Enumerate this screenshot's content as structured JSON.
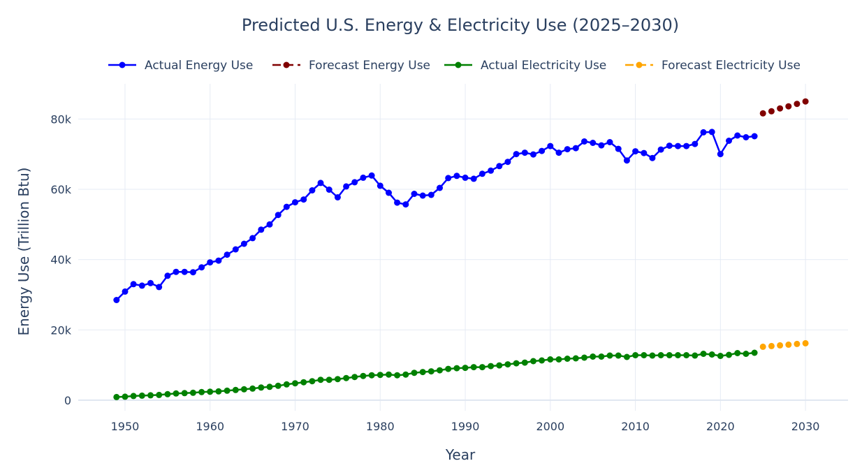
{
  "chart_data": {
    "type": "line",
    "title": "Predicted U.S. Energy & Electricity Use (2025–2030)",
    "xlabel": "Year",
    "ylabel": "Energy Use (Trillion Btu)",
    "xlim": [
      1944.5,
      2035
    ],
    "ylim": [
      -3000,
      90000
    ],
    "x_ticks": [
      1950,
      1960,
      1970,
      1980,
      1990,
      2000,
      2010,
      2020,
      2030
    ],
    "y_ticks": [
      0,
      20000,
      40000,
      60000,
      80000
    ],
    "y_tick_labels": [
      "0",
      "20k",
      "40k",
      "60k",
      "80k"
    ],
    "grid": true,
    "legend_position": "top",
    "series": [
      {
        "name": "Actual Energy Use",
        "color": "#0000ff",
        "style": "solid",
        "x": [
          1949,
          1950,
          1951,
          1952,
          1953,
          1954,
          1955,
          1956,
          1957,
          1958,
          1959,
          1960,
          1961,
          1962,
          1963,
          1964,
          1965,
          1966,
          1967,
          1968,
          1969,
          1970,
          1971,
          1972,
          1973,
          1974,
          1975,
          1976,
          1977,
          1978,
          1979,
          1980,
          1981,
          1982,
          1983,
          1984,
          1985,
          1986,
          1987,
          1988,
          1989,
          1990,
          1991,
          1992,
          1993,
          1994,
          1995,
          1996,
          1997,
          1998,
          1999,
          2000,
          2001,
          2002,
          2003,
          2004,
          2005,
          2006,
          2007,
          2008,
          2009,
          2010,
          2011,
          2012,
          2013,
          2014,
          2015,
          2016,
          2017,
          2018,
          2019,
          2020,
          2021,
          2022,
          2023,
          2024
        ],
        "values": [
          28500,
          30900,
          33000,
          32600,
          33300,
          32200,
          35400,
          36500,
          36500,
          36400,
          37800,
          39200,
          39700,
          41400,
          42900,
          44500,
          46100,
          48500,
          50000,
          52700,
          55000,
          56300,
          57100,
          59700,
          61800,
          59900,
          57700,
          60800,
          62000,
          63300,
          63900,
          61000,
          59000,
          56200,
          55700,
          58700,
          58200,
          58400,
          60400,
          63200,
          63800,
          63300,
          63000,
          64400,
          65300,
          66600,
          67800,
          70000,
          70400,
          69900,
          70900,
          72300,
          70400,
          71400,
          71700,
          73600,
          73200,
          72500,
          73400,
          71500,
          68200,
          70800,
          70300,
          68900,
          71300,
          72400,
          72300,
          72300,
          72900,
          76200,
          76300,
          70000,
          73800,
          75300,
          74800,
          75100
        ]
      },
      {
        "name": "Forecast Energy Use",
        "color": "#800000",
        "style": "dash",
        "x": [
          2025,
          2026,
          2027,
          2028,
          2029,
          2030
        ],
        "values": [
          81600,
          82200,
          83000,
          83600,
          84300,
          85000
        ]
      },
      {
        "name": "Actual Electricity Use",
        "color": "#008000",
        "style": "solid",
        "x": [
          1949,
          1950,
          1951,
          1952,
          1953,
          1954,
          1955,
          1956,
          1957,
          1958,
          1959,
          1960,
          1961,
          1962,
          1963,
          1964,
          1965,
          1966,
          1967,
          1968,
          1969,
          1970,
          1971,
          1972,
          1973,
          1974,
          1975,
          1976,
          1977,
          1978,
          1979,
          1980,
          1981,
          1982,
          1983,
          1984,
          1985,
          1986,
          1987,
          1988,
          1989,
          1990,
          1991,
          1992,
          1993,
          1994,
          1995,
          1996,
          1997,
          1998,
          1999,
          2000,
          2001,
          2002,
          2003,
          2004,
          2005,
          2006,
          2007,
          2008,
          2009,
          2010,
          2011,
          2012,
          2013,
          2014,
          2015,
          2016,
          2017,
          2018,
          2019,
          2020,
          2021,
          2022,
          2023,
          2024
        ],
        "values": [
          900,
          1000,
          1200,
          1300,
          1400,
          1500,
          1700,
          1900,
          2000,
          2100,
          2300,
          2400,
          2500,
          2700,
          2900,
          3100,
          3300,
          3600,
          3800,
          4100,
          4500,
          4800,
          5100,
          5400,
          5800,
          5800,
          6000,
          6300,
          6600,
          6900,
          7100,
          7200,
          7300,
          7100,
          7300,
          7800,
          8000,
          8200,
          8500,
          8900,
          9100,
          9200,
          9400,
          9400,
          9700,
          9900,
          10200,
          10500,
          10700,
          11100,
          11300,
          11600,
          11600,
          11800,
          11900,
          12100,
          12400,
          12400,
          12700,
          12700,
          12300,
          12800,
          12800,
          12700,
          12800,
          12800,
          12800,
          12800,
          12700,
          13200,
          13000,
          12600,
          12900,
          13400,
          13200,
          13500
        ]
      },
      {
        "name": "Forecast Electricity Use",
        "color": "#ffa500",
        "style": "dash",
        "x": [
          2025,
          2026,
          2027,
          2028,
          2029,
          2030
        ],
        "values": [
          15200,
          15400,
          15600,
          15800,
          16000,
          16200
        ]
      }
    ]
  }
}
